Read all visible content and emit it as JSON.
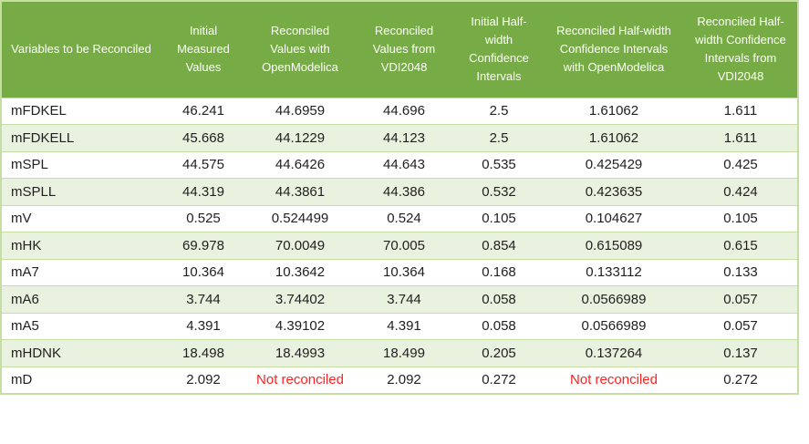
{
  "colors": {
    "header_bg": "#76AB45",
    "header_text": "#FFFFFF",
    "row_alt_bg": "#E9F2DF",
    "row_bg": "#FFFFFF",
    "grid_line": "#C6DEA4",
    "body_text": "#212121",
    "error_text": "#FF2121"
  },
  "chart_data": {
    "type": "table",
    "columns": [
      "Variables to be Reconciled",
      "Initial Measured Values",
      "Reconciled Values with OpenModelica",
      "Reconciled Values from VDI2048",
      "Initial Half-width Confidence Intervals",
      "Reconciled Half-width Confidence Intervals with OpenModelica",
      "Reconciled Half-width Confidence Intervals from VDI2048"
    ],
    "error_value": "Not reconciled",
    "rows": [
      [
        "mFDKEL",
        "46.241",
        "44.6959",
        "44.696",
        "2.5",
        "1.61062",
        "1.611"
      ],
      [
        "mFDKELL",
        "45.668",
        "44.1229",
        "44.123",
        "2.5",
        "1.61062",
        "1.611"
      ],
      [
        "mSPL",
        "44.575",
        "44.6426",
        "44.643",
        "0.535",
        "0.425429",
        "0.425"
      ],
      [
        "mSPLL",
        "44.319",
        "44.3861",
        "44.386",
        "0.532",
        "0.423635",
        "0.424"
      ],
      [
        "mV",
        "0.525",
        "0.524499",
        "0.524",
        "0.105",
        "0.104627",
        "0.105"
      ],
      [
        "mHK",
        "69.978",
        "70.0049",
        "70.005",
        "0.854",
        "0.615089",
        "0.615"
      ],
      [
        "mA7",
        "10.364",
        "10.3642",
        "10.364",
        "0.168",
        "0.133112",
        "0.133"
      ],
      [
        "mA6",
        "3.744",
        "3.74402",
        "3.744",
        "0.058",
        "0.0566989",
        "0.057"
      ],
      [
        "mA5",
        "4.391",
        "4.39102",
        "4.391",
        "0.058",
        "0.0566989",
        "0.057"
      ],
      [
        "mHDNK",
        "18.498",
        "18.4993",
        "18.499",
        "0.205",
        "0.137264",
        "0.137"
      ],
      [
        "mD",
        "2.092",
        "Not reconciled",
        "2.092",
        "0.272",
        "Not reconciled",
        "0.272"
      ]
    ]
  }
}
